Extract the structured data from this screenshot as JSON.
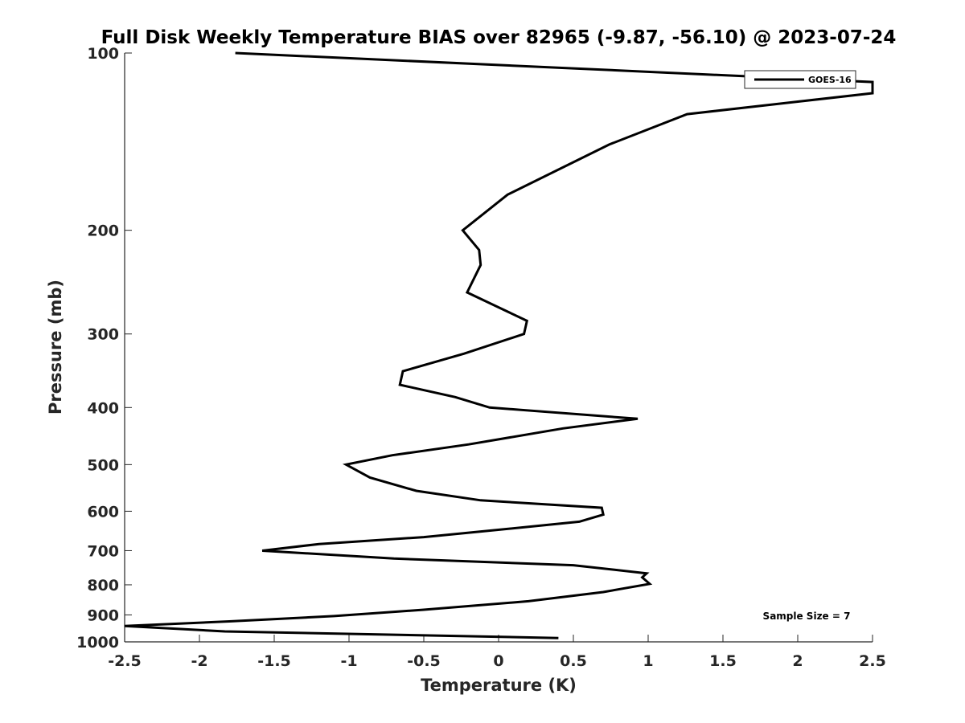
{
  "chart_data": {
    "type": "line",
    "title": "Full Disk Weekly Temperature BIAS over 82965 (-9.87, -56.10) @ 2023-07-24",
    "xlabel": "Temperature (K)",
    "ylabel": "Pressure (mb)",
    "xlim": [
      -2.5,
      2.5
    ],
    "ylim": [
      100,
      1000
    ],
    "y_scale": "log",
    "y_reversed": true,
    "x_ticks": [
      "-2.5",
      "-2",
      "-1.5",
      "-1",
      "-0.5",
      "0",
      "0.5",
      "1",
      "1.5",
      "2",
      "2.5"
    ],
    "y_ticks": [
      "100",
      "200",
      "300",
      "400",
      "500",
      "600",
      "700",
      "800",
      "900",
      "1000"
    ],
    "grid": false,
    "legend_position": "top-right",
    "annotation": "Sample Size = 7",
    "series": [
      {
        "name": "GOES-16",
        "color": "#000000",
        "points": [
          [
            -1.76,
            100
          ],
          [
            2.5,
            112
          ],
          [
            2.5,
            117
          ],
          [
            1.26,
            127
          ],
          [
            0.74,
            143
          ],
          [
            0.06,
            174
          ],
          [
            -0.24,
            200
          ],
          [
            -0.13,
            216
          ],
          [
            -0.12,
            229
          ],
          [
            -0.21,
            255
          ],
          [
            0.19,
            285
          ],
          [
            0.17,
            300
          ],
          [
            -0.23,
            324
          ],
          [
            -0.64,
            347
          ],
          [
            -0.66,
            366
          ],
          [
            -0.29,
            384
          ],
          [
            -0.06,
            400
          ],
          [
            0.93,
            418
          ],
          [
            0.43,
            434
          ],
          [
            -0.2,
            462
          ],
          [
            -0.71,
            482
          ],
          [
            -1.02,
            500
          ],
          [
            -0.86,
            526
          ],
          [
            -0.55,
            554
          ],
          [
            -0.12,
            575
          ],
          [
            0.69,
            592
          ],
          [
            0.7,
            608
          ],
          [
            0.54,
            625
          ],
          [
            -0.05,
            647
          ],
          [
            -0.5,
            664
          ],
          [
            -1.2,
            682
          ],
          [
            -1.58,
            700
          ],
          [
            -0.7,
            722
          ],
          [
            0.5,
            741
          ],
          [
            0.99,
            765
          ],
          [
            0.96,
            777
          ],
          [
            1.01,
            797
          ],
          [
            0.7,
            823
          ],
          [
            0.2,
            853
          ],
          [
            -0.5,
            882
          ],
          [
            -1.1,
            904
          ],
          [
            -1.8,
            923
          ],
          [
            -2.5,
            940
          ],
          [
            -1.83,
            960
          ],
          [
            0.4,
            985
          ]
        ]
      }
    ]
  }
}
